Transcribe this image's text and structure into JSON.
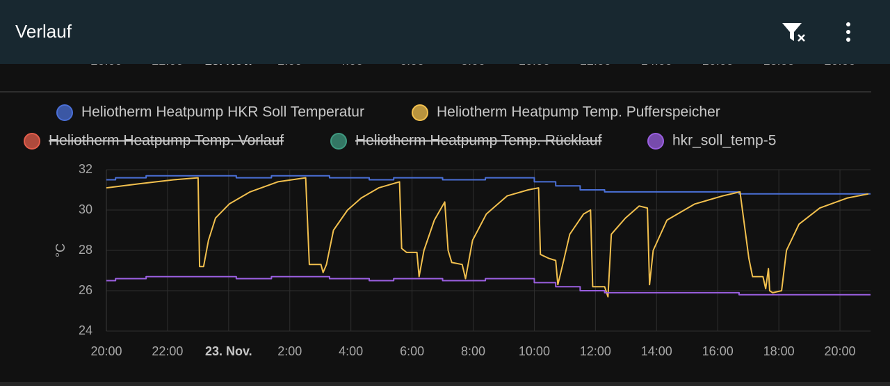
{
  "header": {
    "title": "Verlauf"
  },
  "chart_data": {
    "type": "line",
    "ylabel": "°C",
    "xlim": [
      20,
      45
    ],
    "ylim": [
      24,
      32
    ],
    "yticks": [
      24,
      26,
      28,
      30,
      32
    ],
    "xticks": [
      {
        "value": 20,
        "label": "20:00"
      },
      {
        "value": 22,
        "label": "22:00"
      },
      {
        "value": 24,
        "label": "23. Nov."
      },
      {
        "value": 26,
        "label": "2:00"
      },
      {
        "value": 28,
        "label": "4:00"
      },
      {
        "value": 30,
        "label": "6:00"
      },
      {
        "value": 32,
        "label": "8:00"
      },
      {
        "value": 34,
        "label": "10:00"
      },
      {
        "value": 36,
        "label": "12:00"
      },
      {
        "value": 38,
        "label": "14:00"
      },
      {
        "value": 40,
        "label": "16:00"
      },
      {
        "value": 42,
        "label": "18:00"
      },
      {
        "value": 44,
        "label": "20:00"
      }
    ],
    "grid": true,
    "series": [
      {
        "name": "Heliotherm Heatpump HKR Soll Temperatur",
        "color": "#4a6fd6",
        "step": true,
        "x": [
          20,
          20.3,
          21.3,
          24.25,
          25.4,
          27.3,
          28.6,
          29.4,
          31.0,
          32.4,
          34.0,
          34.7,
          35.5,
          36.3,
          40.7,
          45
        ],
        "values": [
          31.5,
          31.6,
          31.7,
          31.6,
          31.7,
          31.6,
          31.5,
          31.6,
          31.5,
          31.6,
          31.4,
          31.2,
          31.0,
          30.9,
          30.8,
          30.8
        ]
      },
      {
        "name": "Heliotherm Heatpump Temp. Pufferspeicher",
        "color": "#f2c04e",
        "step": false,
        "x": [
          20.0,
          21.07,
          22.2,
          23.0,
          23.05,
          23.18,
          23.34,
          23.57,
          24.02,
          24.7,
          25.61,
          26.52,
          26.64,
          27.02,
          27.09,
          27.2,
          27.43,
          27.89,
          28.34,
          28.91,
          29.59,
          29.66,
          29.82,
          30.16,
          30.23,
          30.39,
          30.73,
          31.07,
          31.18,
          31.3,
          31.64,
          31.75,
          31.98,
          32.43,
          33.11,
          33.8,
          34.14,
          34.2,
          34.48,
          34.7,
          34.77,
          34.93,
          35.16,
          35.61,
          35.84,
          35.91,
          36.3,
          36.41,
          36.52,
          36.98,
          37.43,
          37.7,
          37.77,
          37.89,
          38.34,
          39.25,
          40.16,
          40.73,
          41.02,
          41.14,
          41.48,
          41.57,
          41.66,
          41.7,
          41.8,
          42.09,
          42.25,
          42.66,
          43.34,
          44.25,
          44.93
        ],
        "values": [
          31.1,
          31.3,
          31.5,
          31.6,
          27.2,
          27.2,
          28.5,
          29.6,
          30.3,
          30.9,
          31.4,
          31.6,
          27.3,
          27.3,
          26.9,
          27.3,
          29.0,
          30.0,
          30.6,
          31.1,
          31.4,
          28.1,
          27.9,
          27.9,
          26.7,
          28.0,
          29.5,
          30.4,
          28.0,
          27.4,
          27.3,
          26.6,
          28.5,
          29.8,
          30.7,
          31.0,
          31.1,
          27.8,
          27.6,
          27.5,
          26.3,
          27.3,
          28.8,
          29.8,
          30.0,
          26.2,
          26.2,
          25.7,
          28.8,
          29.6,
          30.2,
          30.1,
          26.3,
          28.0,
          29.5,
          30.3,
          30.7,
          30.9,
          27.6,
          26.7,
          26.7,
          26.1,
          27.1,
          26.0,
          25.9,
          26.0,
          28.0,
          29.3,
          30.1,
          30.6,
          30.8
        ]
      },
      {
        "name": "Heliotherm Heatpump Temp. Vorlauf",
        "color": "#e35d4b",
        "hidden": true,
        "x": [],
        "values": []
      },
      {
        "name": "Heliotherm Heatpump Temp. Rücklauf",
        "color": "#3f9a80",
        "hidden": true,
        "x": [],
        "values": []
      },
      {
        "name": "hkr_soll_temp-5",
        "color": "#9a5fe0",
        "step": true,
        "x": [
          20,
          20.3,
          21.3,
          24.25,
          25.4,
          27.3,
          28.6,
          29.4,
          31.0,
          32.4,
          34.0,
          34.7,
          35.5,
          36.3,
          40.7,
          45
        ],
        "values": [
          26.5,
          26.6,
          26.7,
          26.6,
          26.7,
          26.6,
          26.5,
          26.6,
          26.5,
          26.6,
          26.4,
          26.2,
          26.0,
          25.9,
          25.8,
          25.8
        ]
      }
    ]
  }
}
